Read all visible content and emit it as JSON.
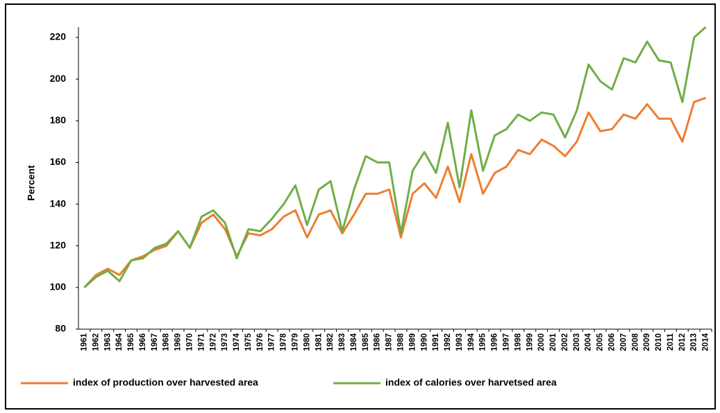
{
  "chart_data": {
    "type": "line",
    "y_label": "Percent",
    "categories": [
      "1961",
      "1962",
      "1963",
      "1964",
      "1965",
      "1966",
      "1967",
      "1968",
      "1969",
      "1970",
      "1971",
      "1972",
      "1973",
      "1974",
      "1975",
      "1976",
      "1977",
      "1978",
      "1979",
      "1980",
      "1981",
      "1982",
      "1983",
      "1984",
      "1985",
      "1986",
      "1987",
      "1988",
      "1989",
      "1990",
      "1991",
      "1992",
      "1993",
      "1994",
      "1995",
      "1996",
      "1997",
      "1998",
      "1999",
      "2000",
      "2001",
      "2002",
      "2003",
      "2004",
      "2005",
      "2006",
      "2007",
      "2008",
      "2009",
      "2010",
      "2011",
      "2012",
      "2013",
      "2014"
    ],
    "series": [
      {
        "name": "index of production over harvested area",
        "color": "#ed7d31",
        "values": [
          100,
          106,
          109,
          106,
          113,
          115,
          118,
          120,
          127,
          119,
          131,
          135,
          128,
          115,
          126,
          125,
          128,
          134,
          137,
          124,
          135,
          137,
          126,
          135,
          145,
          145,
          147,
          124,
          145,
          150,
          143,
          158,
          141,
          164,
          145,
          155,
          158,
          166,
          164,
          171,
          168,
          163,
          170,
          184,
          175,
          176,
          183,
          181,
          188,
          181,
          181,
          170,
          189,
          191
        ]
      },
      {
        "name": "index of calories over harvetsed area",
        "color": "#70ad47",
        "values": [
          100,
          105,
          108,
          103,
          113,
          114,
          119,
          121,
          127,
          119,
          134,
          137,
          131,
          114,
          128,
          127,
          133,
          140,
          149,
          130,
          147,
          151,
          127,
          147,
          163,
          160,
          160,
          126,
          156,
          165,
          155,
          179,
          148,
          185,
          156,
          173,
          176,
          183,
          180,
          184,
          183,
          172,
          185,
          207,
          199,
          195,
          210,
          208,
          218,
          209,
          208,
          189,
          220,
          225
        ]
      }
    ],
    "ylim": [
      80,
      225
    ],
    "yticks": [
      80,
      100,
      120,
      140,
      160,
      180,
      200,
      220
    ],
    "grid": false,
    "legend": "bottom"
  }
}
